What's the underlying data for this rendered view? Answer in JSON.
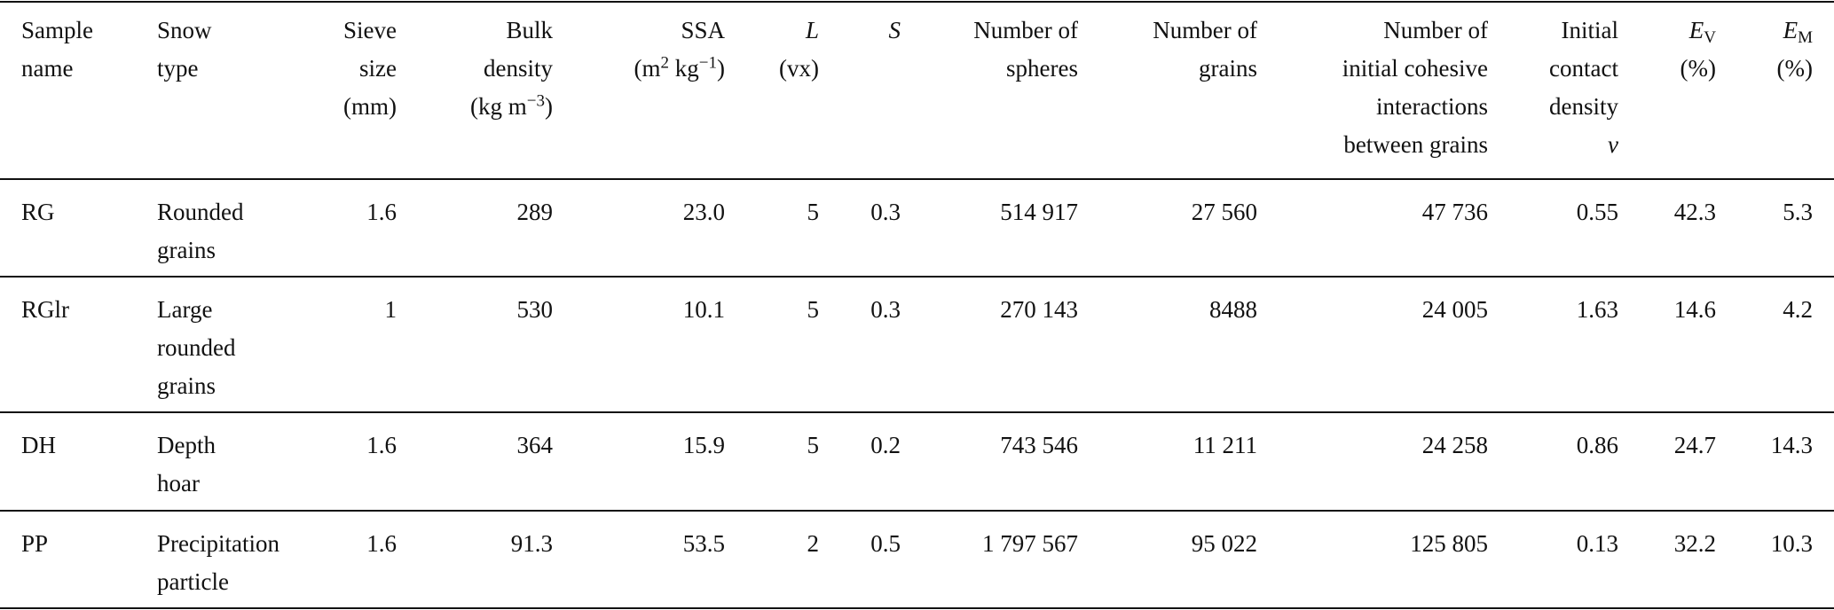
{
  "header": [
    [
      "Sample",
      "name"
    ],
    [
      "Snow",
      "type"
    ],
    [
      "Sieve",
      "size",
      "(mm)"
    ],
    [
      "Bulk",
      "density",
      "(kg m",
      "−3",
      ")"
    ],
    [
      "SSA",
      "(m",
      "2",
      " kg",
      "−1",
      ")"
    ],
    [
      "L",
      "(vx)"
    ],
    [
      "S"
    ],
    [
      "Number of",
      "spheres"
    ],
    [
      "Number of",
      "grains"
    ],
    [
      "Number of",
      "initial cohesive",
      "interactions",
      "between grains"
    ],
    [
      "Initial",
      "contact",
      "density",
      "ν"
    ],
    [
      "E",
      "V",
      "(%)"
    ],
    [
      "E",
      "M",
      "(%)"
    ]
  ],
  "rows": [
    [
      "RG",
      [
        "Rounded",
        "grains"
      ],
      "1.6",
      "289",
      "23.0",
      "5",
      "0.3",
      "514 917",
      "27 560",
      "47 736",
      "0.55",
      "42.3",
      "5.3"
    ],
    [
      "RGlr",
      [
        "Large",
        "rounded",
        "grains"
      ],
      "1",
      "530",
      "10.1",
      "5",
      "0.3",
      "270 143",
      "8488",
      "24 005",
      "1.63",
      "14.6",
      "4.2"
    ],
    [
      "DH",
      [
        "Depth",
        "hoar"
      ],
      "1.6",
      "364",
      "15.9",
      "5",
      "0.2",
      "743 546",
      "11 211",
      "24 258",
      "0.86",
      "24.7",
      "14.3"
    ],
    [
      "PP",
      [
        "Precipitation",
        "particle"
      ],
      "1.6",
      "91.3",
      "53.5",
      "2",
      "0.5",
      "1 797 567",
      "95 022",
      "125 805",
      "0.13",
      "32.2",
      "10.3"
    ]
  ]
}
